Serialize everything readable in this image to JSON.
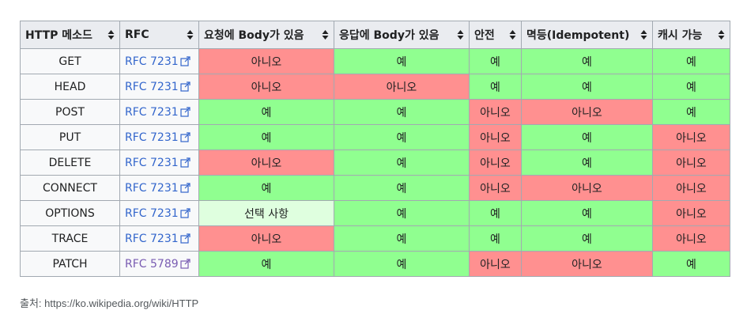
{
  "headers": [
    "HTTP 메소드",
    "RFC",
    "요청에 Body가 있음",
    "응답에 Body가 있음",
    "안전",
    "멱등(Idempotent)",
    "캐시 가능"
  ],
  "header_sort_icon": "sort-updown-icon",
  "link_icon": "external-link-icon",
  "colors": {
    "yes": "#90ff90",
    "no": "#ff9090",
    "optional": "#dfffdf",
    "link": "#3366cc",
    "link_visited": "#795cb2",
    "header_bg": "#eaecf0"
  },
  "rows": [
    {
      "method": "GET",
      "rfc": "RFC 7231",
      "req_body": "아니오",
      "res_body": "예",
      "safe": "예",
      "idempotent": "예",
      "cacheable": "예"
    },
    {
      "method": "HEAD",
      "rfc": "RFC 7231",
      "req_body": "아니오",
      "res_body": "아니오",
      "safe": "예",
      "idempotent": "예",
      "cacheable": "예"
    },
    {
      "method": "POST",
      "rfc": "RFC 7231",
      "req_body": "예",
      "res_body": "예",
      "safe": "아니오",
      "idempotent": "아니오",
      "cacheable": "예"
    },
    {
      "method": "PUT",
      "rfc": "RFC 7231",
      "req_body": "예",
      "res_body": "예",
      "safe": "아니오",
      "idempotent": "예",
      "cacheable": "아니오"
    },
    {
      "method": "DELETE",
      "rfc": "RFC 7231",
      "req_body": "아니오",
      "res_body": "예",
      "safe": "아니오",
      "idempotent": "예",
      "cacheable": "아니오"
    },
    {
      "method": "CONNECT",
      "rfc": "RFC 7231",
      "req_body": "예",
      "res_body": "예",
      "safe": "아니오",
      "idempotent": "아니오",
      "cacheable": "아니오"
    },
    {
      "method": "OPTIONS",
      "rfc": "RFC 7231",
      "req_body": "선택 사항",
      "res_body": "예",
      "safe": "예",
      "idempotent": "예",
      "cacheable": "아니오"
    },
    {
      "method": "TRACE",
      "rfc": "RFC 7231",
      "req_body": "아니오",
      "res_body": "예",
      "safe": "예",
      "idempotent": "예",
      "cacheable": "아니오"
    },
    {
      "method": "PATCH",
      "rfc": "RFC 5789",
      "req_body": "예",
      "res_body": "예",
      "safe": "아니오",
      "idempotent": "아니오",
      "cacheable": "예"
    }
  ],
  "caption": "출처: https://ko.wikipedia.org/wiki/HTTP"
}
